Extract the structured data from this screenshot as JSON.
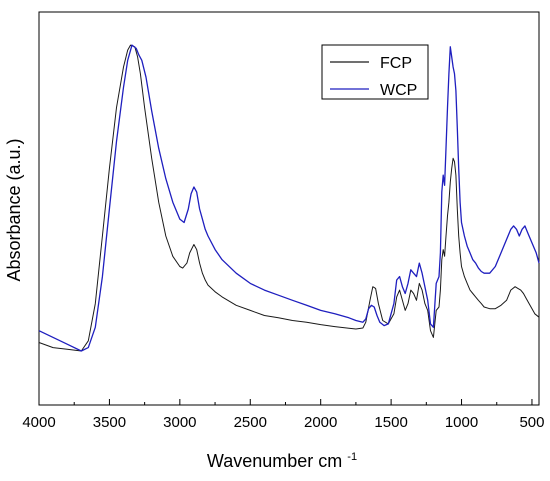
{
  "chart_data": {
    "type": "line",
    "title": "",
    "xlabel": "Wavenumber cm",
    "xlabel_superscript": "-1",
    "ylabel": "Absorbance (a.u.)",
    "xlim": [
      4000,
      450
    ],
    "x_reversed": true,
    "y_ticks_shown": false,
    "grid": false,
    "legend_position": "top-right",
    "xticks": [
      4000,
      3500,
      3000,
      2500,
      2000,
      1500,
      1000,
      500
    ],
    "xtick_labels": [
      "4000",
      "3500",
      "3000",
      "2500",
      "2000",
      "1500",
      "1000",
      "500"
    ],
    "ylim": [
      0,
      1.0
    ],
    "series": [
      {
        "name": "FCP",
        "color": "#1a1a1a",
        "x": [
          4000,
          3900,
          3800,
          3700,
          3650,
          3600,
          3550,
          3500,
          3450,
          3400,
          3370,
          3350,
          3320,
          3300,
          3280,
          3250,
          3200,
          3150,
          3100,
          3050,
          3000,
          2980,
          2950,
          2930,
          2900,
          2880,
          2860,
          2840,
          2820,
          2800,
          2750,
          2700,
          2600,
          2500,
          2400,
          2300,
          2200,
          2100,
          2000,
          1900,
          1800,
          1750,
          1700,
          1680,
          1650,
          1630,
          1610,
          1590,
          1560,
          1520,
          1480,
          1460,
          1440,
          1420,
          1400,
          1380,
          1360,
          1340,
          1320,
          1300,
          1280,
          1260,
          1240,
          1220,
          1200,
          1180,
          1160,
          1150,
          1140,
          1130,
          1120,
          1110,
          1100,
          1090,
          1080,
          1070,
          1060,
          1050,
          1040,
          1030,
          1020,
          1010,
          1000,
          980,
          960,
          940,
          920,
          900,
          880,
          860,
          840,
          800,
          760,
          720,
          680,
          650,
          620,
          600,
          580,
          560,
          540,
          520,
          500,
          480,
          450
        ],
        "y": [
          0.105,
          0.09,
          0.085,
          0.08,
          0.11,
          0.22,
          0.42,
          0.62,
          0.8,
          0.92,
          0.97,
          0.985,
          0.98,
          0.95,
          0.9,
          0.8,
          0.65,
          0.52,
          0.42,
          0.36,
          0.33,
          0.325,
          0.34,
          0.37,
          0.395,
          0.38,
          0.34,
          0.31,
          0.29,
          0.275,
          0.255,
          0.24,
          0.215,
          0.2,
          0.185,
          0.178,
          0.17,
          0.165,
          0.158,
          0.152,
          0.147,
          0.145,
          0.148,
          0.165,
          0.23,
          0.27,
          0.265,
          0.22,
          0.17,
          0.16,
          0.19,
          0.24,
          0.26,
          0.23,
          0.2,
          0.22,
          0.26,
          0.25,
          0.23,
          0.28,
          0.26,
          0.22,
          0.2,
          0.14,
          0.12,
          0.2,
          0.21,
          0.26,
          0.35,
          0.38,
          0.36,
          0.42,
          0.48,
          0.52,
          0.58,
          0.62,
          0.65,
          0.64,
          0.6,
          0.5,
          0.42,
          0.37,
          0.33,
          0.3,
          0.28,
          0.26,
          0.25,
          0.24,
          0.23,
          0.22,
          0.21,
          0.205,
          0.205,
          0.215,
          0.23,
          0.26,
          0.27,
          0.265,
          0.26,
          0.25,
          0.235,
          0.22,
          0.205,
          0.19,
          0.18
        ]
      },
      {
        "name": "WCP",
        "color": "#1f1fbf",
        "x": [
          4000,
          3900,
          3800,
          3700,
          3650,
          3600,
          3550,
          3500,
          3450,
          3400,
          3370,
          3340,
          3310,
          3290,
          3270,
          3240,
          3200,
          3150,
          3100,
          3050,
          3000,
          2970,
          2940,
          2920,
          2900,
          2880,
          2860,
          2840,
          2820,
          2800,
          2750,
          2700,
          2600,
          2500,
          2400,
          2300,
          2200,
          2100,
          2000,
          1900,
          1800,
          1750,
          1700,
          1680,
          1660,
          1640,
          1620,
          1600,
          1580,
          1550,
          1520,
          1480,
          1460,
          1440,
          1420,
          1400,
          1380,
          1360,
          1340,
          1320,
          1300,
          1280,
          1260,
          1240,
          1220,
          1200,
          1180,
          1160,
          1150,
          1140,
          1130,
          1120,
          1110,
          1100,
          1090,
          1080,
          1070,
          1060,
          1050,
          1040,
          1030,
          1020,
          1010,
          1000,
          980,
          960,
          940,
          920,
          900,
          880,
          860,
          840,
          800,
          760,
          720,
          680,
          650,
          630,
          610,
          590,
          570,
          550,
          530,
          510,
          490,
          470,
          450
        ],
        "y": [
          0.14,
          0.12,
          0.1,
          0.08,
          0.09,
          0.15,
          0.3,
          0.5,
          0.7,
          0.86,
          0.94,
          0.985,
          0.975,
          0.955,
          0.94,
          0.89,
          0.79,
          0.68,
          0.59,
          0.52,
          0.47,
          0.46,
          0.5,
          0.545,
          0.565,
          0.55,
          0.5,
          0.47,
          0.44,
          0.42,
          0.38,
          0.35,
          0.31,
          0.28,
          0.26,
          0.245,
          0.23,
          0.215,
          0.2,
          0.19,
          0.178,
          0.17,
          0.165,
          0.175,
          0.205,
          0.215,
          0.21,
          0.185,
          0.165,
          0.155,
          0.16,
          0.22,
          0.29,
          0.3,
          0.27,
          0.25,
          0.28,
          0.32,
          0.31,
          0.3,
          0.34,
          0.31,
          0.27,
          0.23,
          0.16,
          0.15,
          0.28,
          0.3,
          0.37,
          0.55,
          0.6,
          0.57,
          0.68,
          0.8,
          0.9,
          0.98,
          0.95,
          0.92,
          0.9,
          0.85,
          0.74,
          0.62,
          0.52,
          0.46,
          0.42,
          0.39,
          0.37,
          0.35,
          0.34,
          0.325,
          0.315,
          0.31,
          0.31,
          0.33,
          0.37,
          0.41,
          0.44,
          0.45,
          0.44,
          0.42,
          0.44,
          0.45,
          0.43,
          0.41,
          0.39,
          0.37,
          0.34
        ]
      }
    ]
  }
}
